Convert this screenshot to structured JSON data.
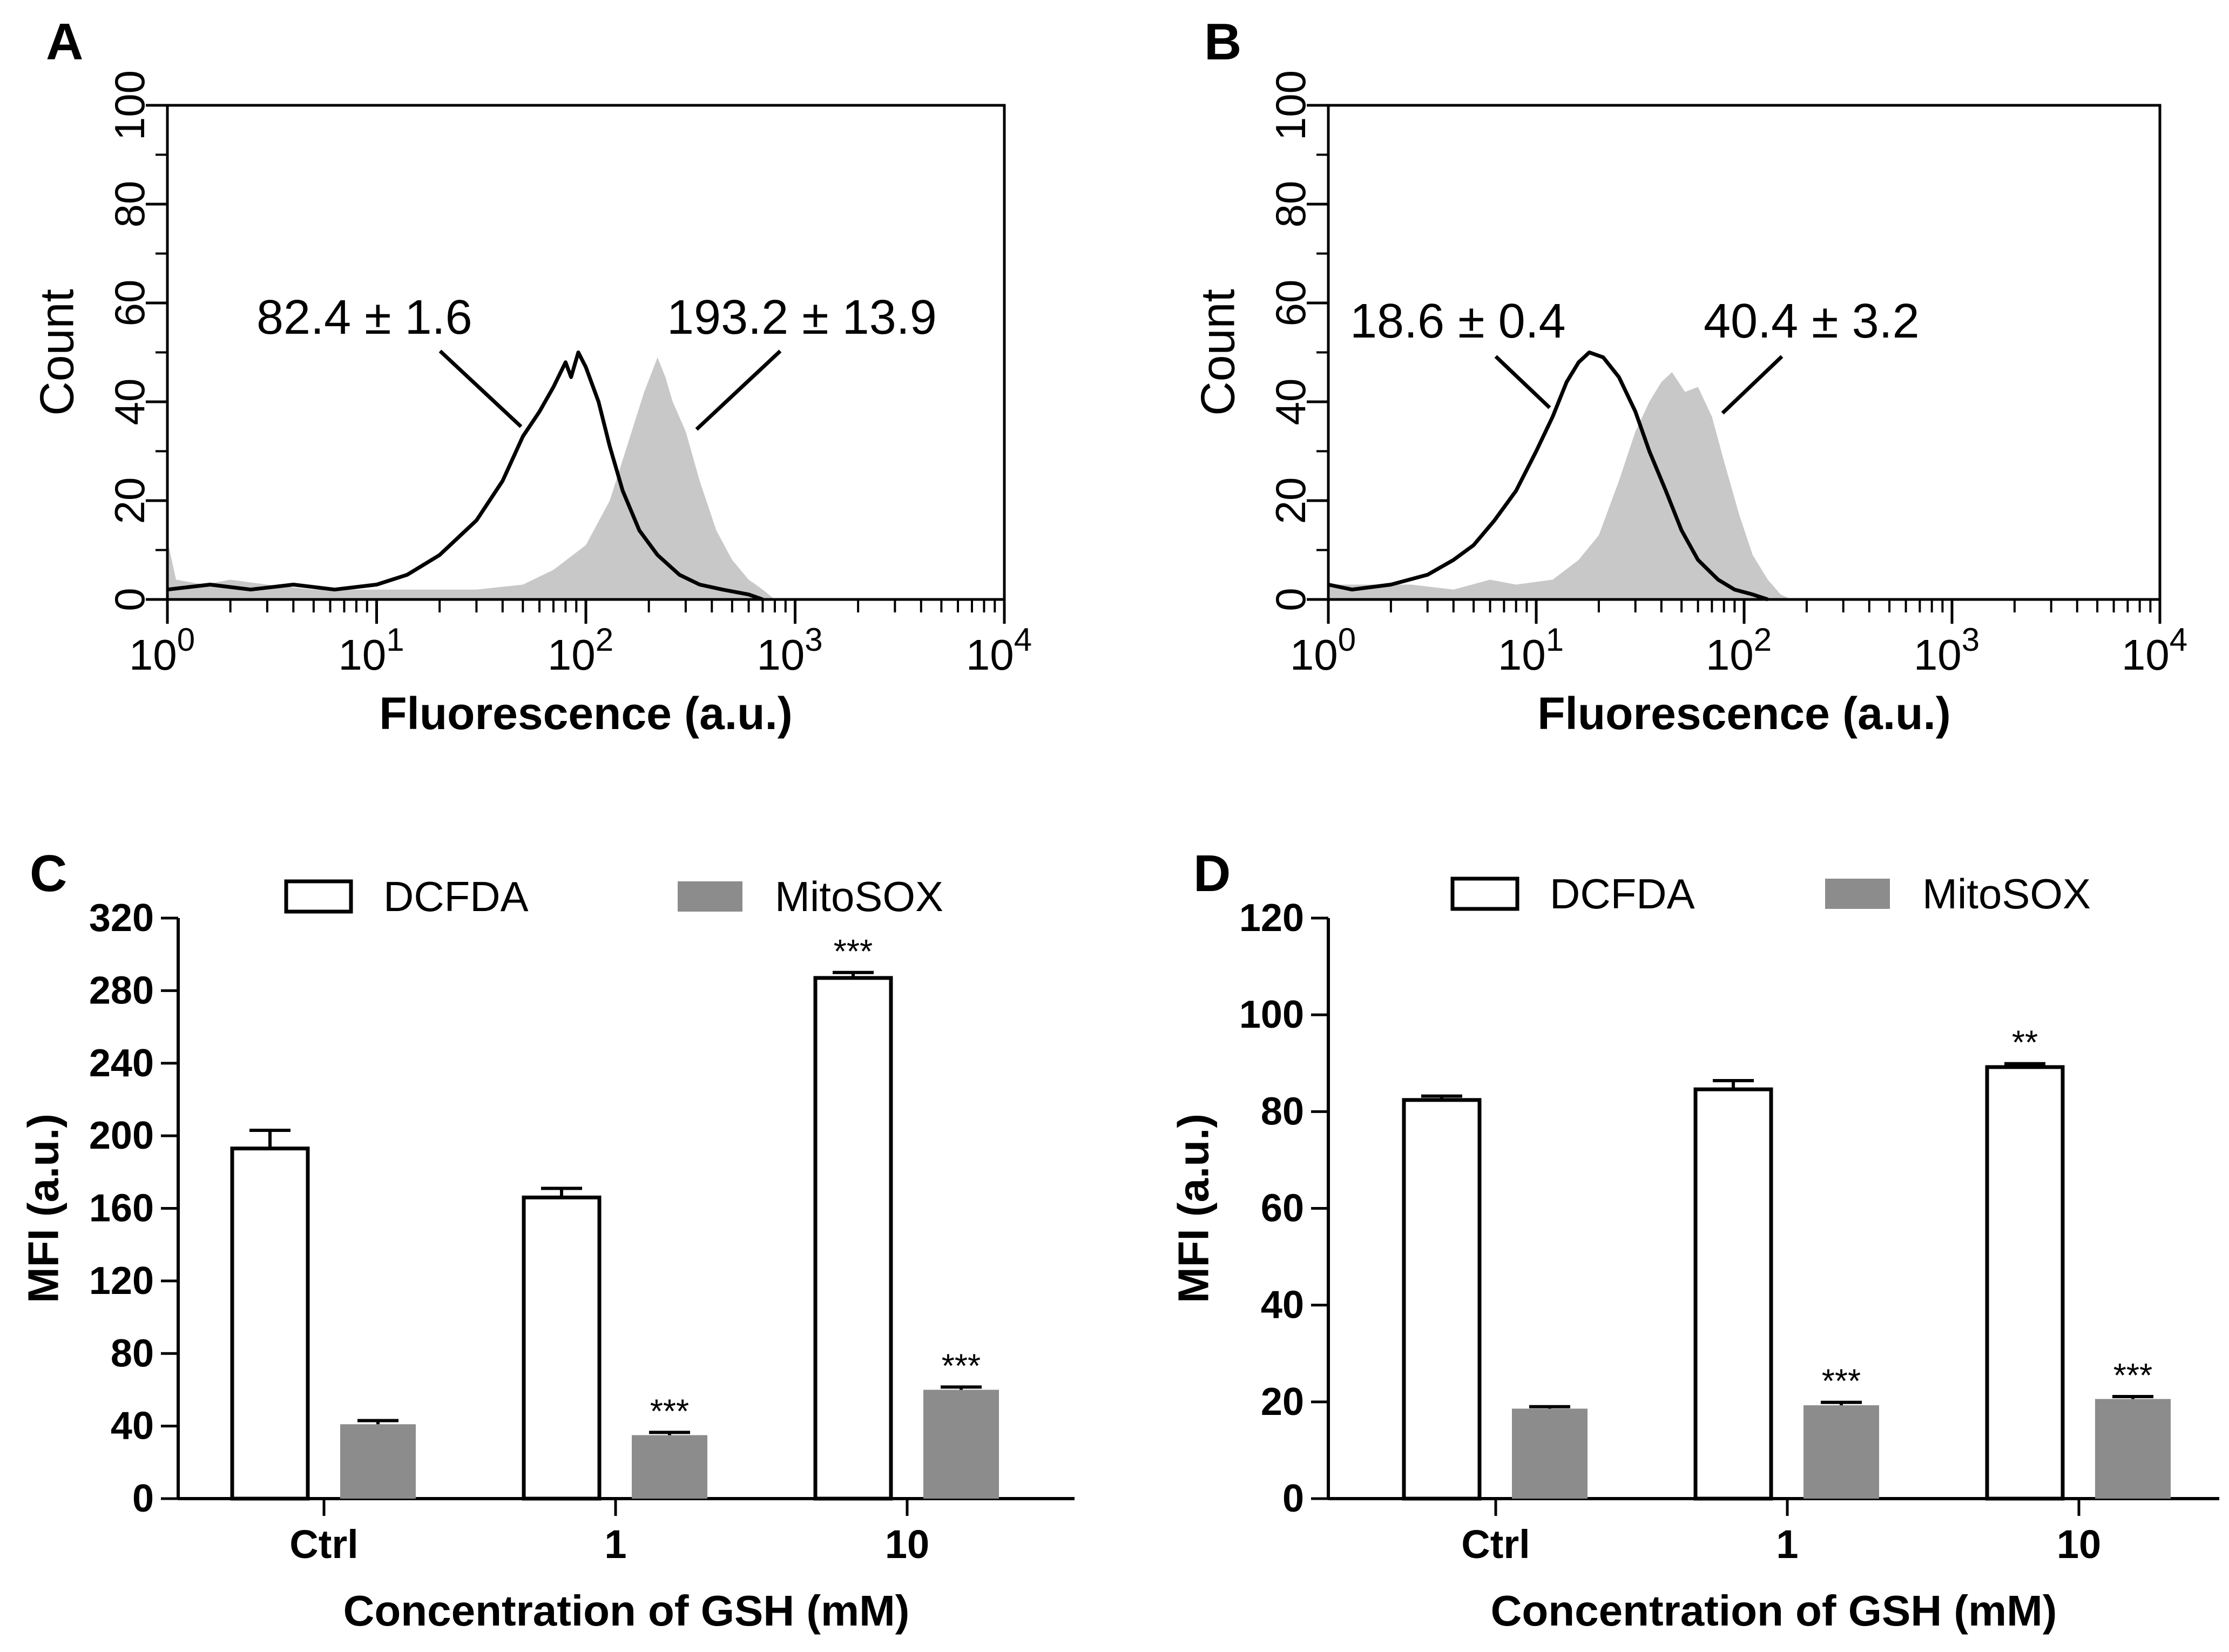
{
  "figure": {
    "panels": [
      "A",
      "B",
      "C",
      "D"
    ]
  },
  "chart_data": [
    {
      "panel": "A",
      "type": "area",
      "xlabel": "Fluorescence (a.u.)",
      "ylabel": "Count",
      "xscale": "log",
      "xlim": [
        1,
        10000
      ],
      "ylim": [
        0,
        100
      ],
      "xticks": [
        {
          "base": "10",
          "exp": "0"
        },
        {
          "base": "10",
          "exp": "1"
        },
        {
          "base": "10",
          "exp": "2"
        },
        {
          "base": "10",
          "exp": "3"
        },
        {
          "base": "10",
          "exp": "4"
        }
      ],
      "yticks": [
        "0",
        "20",
        "40",
        "60",
        "80",
        "100"
      ],
      "annotations": [
        {
          "mean": "82.4",
          "pm": "±",
          "sd": "1.6"
        },
        {
          "mean": "193.2",
          "pm": "±",
          "sd": "13.9"
        }
      ],
      "series": [
        {
          "name": "black-outline-histogram",
          "style": "line",
          "color": "#000000",
          "points": [
            [
              1.0,
              2
            ],
            [
              1.6,
              3
            ],
            [
              2.5,
              2
            ],
            [
              4.0,
              3
            ],
            [
              6.3,
              2
            ],
            [
              10,
              3
            ],
            [
              14,
              5
            ],
            [
              20,
              9
            ],
            [
              30,
              16
            ],
            [
              40,
              24
            ],
            [
              50,
              33
            ],
            [
              60,
              38
            ],
            [
              70,
              43
            ],
            [
              80,
              48
            ],
            [
              85,
              45
            ],
            [
              92,
              50
            ],
            [
              100,
              47
            ],
            [
              115,
              40
            ],
            [
              130,
              31
            ],
            [
              150,
              22
            ],
            [
              180,
              14
            ],
            [
              220,
              9
            ],
            [
              280,
              5
            ],
            [
              350,
              3
            ],
            [
              450,
              2
            ],
            [
              600,
              1
            ],
            [
              700,
              0
            ]
          ]
        },
        {
          "name": "gray-filled-histogram",
          "style": "fill",
          "color": "#c8c8c8",
          "points": [
            [
              1.0,
              12
            ],
            [
              1.1,
              4
            ],
            [
              1.5,
              3
            ],
            [
              2.0,
              4
            ],
            [
              3.0,
              3
            ],
            [
              5,
              2
            ],
            [
              8,
              2
            ],
            [
              15,
              2
            ],
            [
              30,
              2
            ],
            [
              50,
              3
            ],
            [
              70,
              6
            ],
            [
              100,
              11
            ],
            [
              130,
              20
            ],
            [
              160,
              32
            ],
            [
              190,
              42
            ],
            [
              220,
              49
            ],
            [
              240,
              45
            ],
            [
              260,
              40
            ],
            [
              300,
              34
            ],
            [
              350,
              24
            ],
            [
              420,
              14
            ],
            [
              500,
              8
            ],
            [
              600,
              4
            ],
            [
              700,
              2
            ],
            [
              800,
              0
            ]
          ]
        }
      ]
    },
    {
      "panel": "B",
      "type": "area",
      "xlabel": "Fluorescence (a.u.)",
      "ylabel": "Count",
      "xscale": "log",
      "xlim": [
        1,
        10000
      ],
      "ylim": [
        0,
        100
      ],
      "xticks": [
        {
          "base": "10",
          "exp": "0"
        },
        {
          "base": "10",
          "exp": "1"
        },
        {
          "base": "10",
          "exp": "2"
        },
        {
          "base": "10",
          "exp": "3"
        },
        {
          "base": "10",
          "exp": "4"
        }
      ],
      "yticks": [
        "0",
        "20",
        "40",
        "60",
        "80",
        "100"
      ],
      "annotations": [
        {
          "mean": "18.6",
          "pm": "±",
          "sd": "0.4"
        },
        {
          "mean": "40.4",
          "pm": "±",
          "sd": "3.2"
        }
      ],
      "series": [
        {
          "name": "black-outline-histogram",
          "style": "line",
          "color": "#000000",
          "points": [
            [
              1.0,
              3
            ],
            [
              1.3,
              2
            ],
            [
              2.0,
              3
            ],
            [
              3.0,
              5
            ],
            [
              4.0,
              8
            ],
            [
              5.0,
              11
            ],
            [
              6.3,
              16
            ],
            [
              8.0,
              22
            ],
            [
              10,
              30
            ],
            [
              12,
              37
            ],
            [
              14,
              44
            ],
            [
              16,
              48
            ],
            [
              18,
              50
            ],
            [
              21,
              49
            ],
            [
              25,
              45
            ],
            [
              30,
              38
            ],
            [
              35,
              30
            ],
            [
              42,
              22
            ],
            [
              50,
              14
            ],
            [
              60,
              8
            ],
            [
              75,
              4
            ],
            [
              90,
              2
            ],
            [
              110,
              1
            ],
            [
              130,
              0
            ]
          ]
        },
        {
          "name": "gray-filled-histogram",
          "style": "fill",
          "color": "#c8c8c8",
          "points": [
            [
              1.0,
              3
            ],
            [
              1.5,
              3
            ],
            [
              2.5,
              3
            ],
            [
              4.0,
              2
            ],
            [
              6.0,
              4
            ],
            [
              8.0,
              3
            ],
            [
              12,
              4
            ],
            [
              16,
              8
            ],
            [
              20,
              13
            ],
            [
              25,
              24
            ],
            [
              30,
              34
            ],
            [
              35,
              40
            ],
            [
              40,
              44
            ],
            [
              45,
              46
            ],
            [
              52,
              42
            ],
            [
              60,
              43
            ],
            [
              70,
              37
            ],
            [
              80,
              28
            ],
            [
              95,
              17
            ],
            [
              110,
              9
            ],
            [
              130,
              4
            ],
            [
              150,
              1
            ],
            [
              170,
              0
            ]
          ]
        }
      ]
    },
    {
      "panel": "C",
      "type": "bar",
      "categories": [
        "Ctrl",
        "1",
        "10"
      ],
      "xlabel": "Concentration of GSH (mM)",
      "ylabel": "MFI (a.u.)",
      "ylim": [
        0,
        320
      ],
      "yticks": [
        "0",
        "40",
        "80",
        "120",
        "160",
        "200",
        "240",
        "280",
        "320"
      ],
      "series": [
        {
          "name": "DCFDA",
          "color": "#ffffff",
          "values": [
            193,
            166,
            287
          ],
          "errors": [
            10,
            5,
            3
          ],
          "significance": [
            "",
            "",
            "***"
          ]
        },
        {
          "name": "MitoSOX",
          "color": "#8c8c8c",
          "values": [
            41,
            35,
            60
          ],
          "errors": [
            2,
            1.5,
            1.5
          ],
          "significance": [
            "",
            "***",
            "***"
          ]
        }
      ]
    },
    {
      "panel": "D",
      "type": "bar",
      "categories": [
        "Ctrl",
        "1",
        "10"
      ],
      "xlabel": "Concentration of GSH (mM)",
      "ylabel": "MFI (a.u.)",
      "ylim": [
        0,
        120
      ],
      "yticks": [
        "0",
        "20",
        "40",
        "60",
        "80",
        "100",
        "120"
      ],
      "series": [
        {
          "name": "DCFDA",
          "color": "#ffffff",
          "values": [
            82.4,
            84.6,
            89.2
          ],
          "errors": [
            0.8,
            1.8,
            0.7
          ],
          "significance": [
            "",
            "",
            "**"
          ]
        },
        {
          "name": "MitoSOX",
          "color": "#8c8c8c",
          "values": [
            18.6,
            19.3,
            20.6
          ],
          "errors": [
            0.4,
            0.6,
            0.5
          ],
          "significance": [
            "",
            "***",
            "***"
          ]
        }
      ]
    }
  ]
}
